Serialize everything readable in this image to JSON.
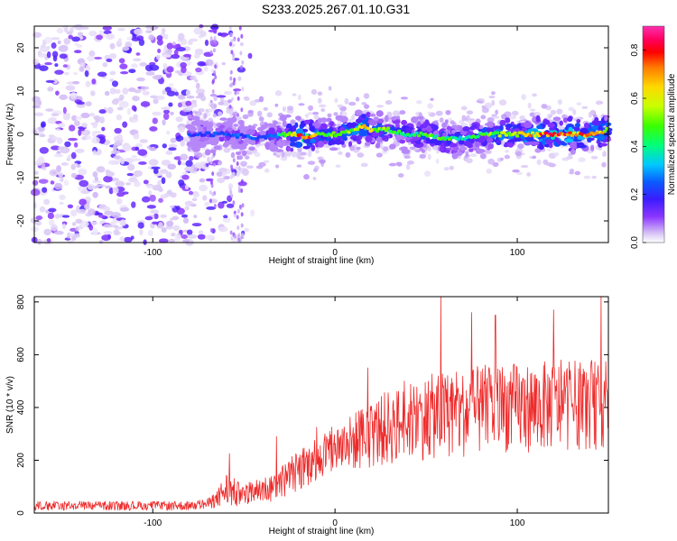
{
  "title": "S233.2025.267.01.10.G31",
  "chart_data": [
    {
      "type": "heatmap",
      "name": "spectrogram",
      "xlabel": "Height of straight line (km)",
      "ylabel": "Frequency (Hz)",
      "xlim": [
        -165,
        150
      ],
      "ylim": [
        -25,
        25
      ],
      "xticks": [
        -100,
        0,
        100
      ],
      "yticks": [
        -20,
        -10,
        0,
        10,
        20
      ],
      "colorbar": {
        "label": "Normalized spectral amplitude",
        "range": [
          0,
          0.9
        ],
        "ticks": [
          0.0,
          0.2,
          0.4,
          0.6,
          0.8
        ],
        "colors": [
          "#ffffff",
          "#d9c8f5",
          "#8b35ff",
          "#3b1cff",
          "#0a5bff",
          "#00c8ff",
          "#00ff7a",
          "#3cff00",
          "#c8ff00",
          "#ffd800",
          "#ff7a00",
          "#ff0000",
          "#ff0060",
          "#ff2fb0"
        ]
      },
      "noise_region_x": [
        -165,
        -80
      ],
      "signal_start_x": -80,
      "signal_center_hz": 0,
      "signal_ridge": {
        "x": [
          -80,
          -60,
          -40,
          -30,
          -20,
          -15,
          -10,
          0,
          10,
          15,
          20,
          30,
          40,
          50,
          60,
          70,
          80,
          90,
          100,
          110,
          120,
          130,
          140,
          150
        ],
        "freq_hz": [
          0,
          0,
          -1,
          0,
          0,
          -1,
          0,
          0,
          1,
          2,
          1,
          1,
          0,
          0,
          -1,
          -1,
          0,
          0,
          0,
          0,
          0,
          0,
          0,
          1
        ],
        "amplitude": [
          0.25,
          0.3,
          0.3,
          0.4,
          0.8,
          0.85,
          0.6,
          0.5,
          0.6,
          0.75,
          0.6,
          0.5,
          0.45,
          0.5,
          0.5,
          0.45,
          0.5,
          0.6,
          0.65,
          0.7,
          0.85,
          0.75,
          0.85,
          0.6
        ]
      }
    },
    {
      "type": "line",
      "name": "snr",
      "xlabel": "Height of straight line (km)",
      "ylabel": "SNR (10 * v/v)",
      "xlim": [
        -165,
        150
      ],
      "ylim": [
        0,
        820
      ],
      "xticks": [
        -100,
        0,
        100
      ],
      "yticks": [
        0,
        200,
        400,
        600,
        800
      ],
      "color": "#ee2a2a",
      "envelope": {
        "x": [
          -165,
          -120,
          -80,
          -70,
          -65,
          -60,
          -55,
          -50,
          -45,
          -40,
          -35,
          -30,
          -25,
          -20,
          -15,
          -10,
          -5,
          0,
          10,
          20,
          30,
          40,
          50,
          60,
          70,
          80,
          90,
          100,
          110,
          120,
          130,
          140,
          150
        ],
        "low": [
          10,
          10,
          10,
          15,
          20,
          20,
          20,
          25,
          30,
          40,
          40,
          60,
          60,
          80,
          100,
          120,
          140,
          150,
          160,
          170,
          180,
          200,
          200,
          210,
          210,
          220,
          230,
          230,
          230,
          240,
          240,
          240,
          240
        ],
        "high": [
          45,
          45,
          45,
          55,
          80,
          160,
          130,
          100,
          130,
          140,
          150,
          180,
          210,
          240,
          270,
          300,
          320,
          330,
          380,
          430,
          470,
          490,
          520,
          540,
          540,
          560,
          570,
          570,
          570,
          580,
          580,
          580,
          580
        ]
      },
      "peaks": [
        {
          "x": -58,
          "y": 225
        },
        {
          "x": -32,
          "y": 290
        },
        {
          "x": -10,
          "y": 325
        },
        {
          "x": 18,
          "y": 550
        },
        {
          "x": 38,
          "y": 500
        },
        {
          "x": 58,
          "y": 820
        },
        {
          "x": 75,
          "y": 760
        },
        {
          "x": 88,
          "y": 750
        },
        {
          "x": 120,
          "y": 770
        },
        {
          "x": 146,
          "y": 820
        }
      ]
    }
  ]
}
